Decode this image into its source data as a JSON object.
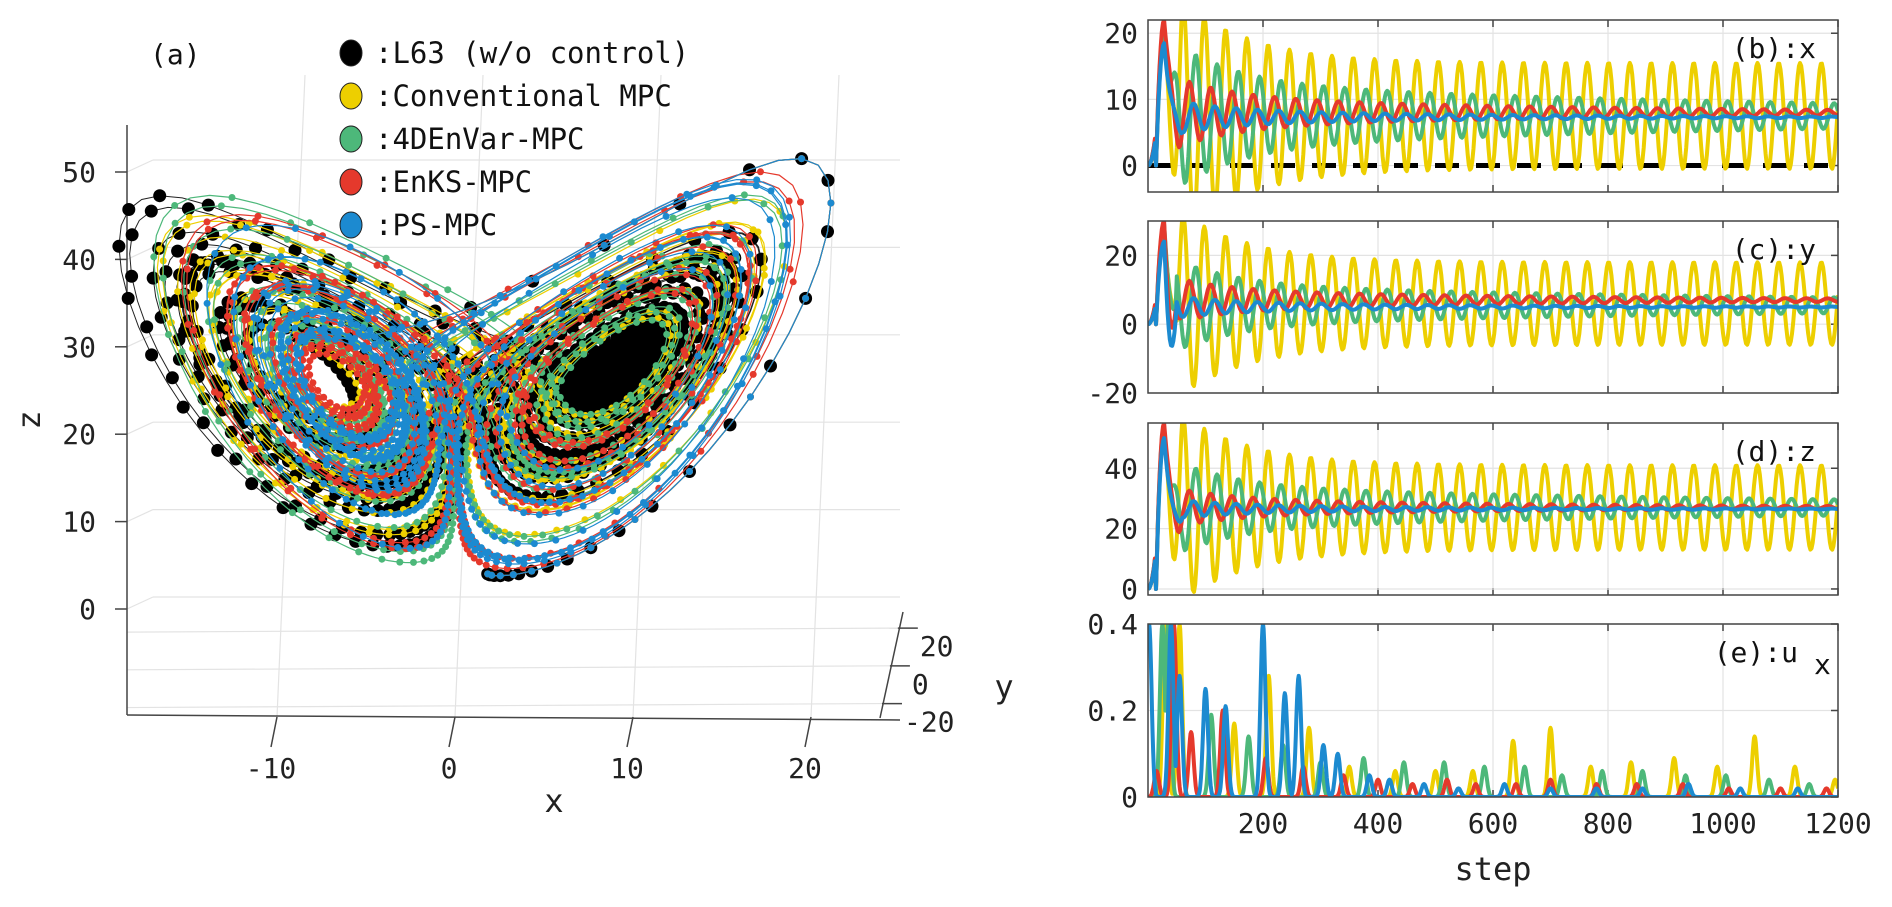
{
  "colors": {
    "L63": "#000000",
    "Conventional MPC": "#EDCF00",
    "4DEnVar-MPC": "#4DB87A",
    "EnKS-MPC": "#E5392C",
    "PS-MPC": "#1C8AD0",
    "zero_line": "#000000"
  },
  "chart_data": [
    {
      "id": "a",
      "type": "scatter",
      "projection": "3d",
      "panel_label": "(a)",
      "title": "",
      "xlabel": "x",
      "ylabel": "y",
      "zlabel": "z",
      "xticks": [
        -10,
        0,
        10,
        20
      ],
      "yticks": [
        -20,
        0,
        20
      ],
      "zticks": [
        0,
        10,
        20,
        30,
        40,
        50
      ],
      "xlim": [
        -19,
        23
      ],
      "ylim": [
        -25,
        28
      ],
      "zlim": [
        0,
        56
      ],
      "grid": true,
      "legend_position": "top-center",
      "legend": [
        {
          "label": ":L63 (w/o control)",
          "series": "L63"
        },
        {
          "label": ":Conventional MPC",
          "series": "Conventional MPC"
        },
        {
          "label": ":4DEnVar-MPC",
          "series": "4DEnVar-MPC"
        },
        {
          "label": ":EnKS-MPC",
          "series": "EnKS-MPC"
        },
        {
          "label": ":PS-MPC",
          "series": "PS-MPC"
        }
      ],
      "series": [
        {
          "name": "L63",
          "description": "uncontrolled Lorenz-63 trajectory covering both wings",
          "start": [
            1.5,
            1.5,
            4
          ],
          "marker": "large",
          "wings": "both"
        },
        {
          "name": "Conventional MPC",
          "description": "trajectory confined to right wing, wide orbit",
          "start": [
            1.5,
            1.5,
            4
          ],
          "marker": "small",
          "settle_radius": 0.75
        },
        {
          "name": "4DEnVar-MPC",
          "description": "trajectory confined to right wing, medium orbit",
          "start": [
            1.5,
            1.5,
            4
          ],
          "marker": "small",
          "settle_radius": 0.5
        },
        {
          "name": "EnKS-MPC",
          "description": "trajectory confined to right wing, tighter orbit",
          "start": [
            1.5,
            1.5,
            4
          ],
          "marker": "small",
          "settle_radius": 0.38
        },
        {
          "name": "PS-MPC",
          "description": "trajectory confined to right wing, tightest orbit around fixed point",
          "start": [
            1.5,
            1.5,
            4
          ],
          "marker": "small",
          "settle_radius": 0.28
        }
      ]
    },
    {
      "id": "b",
      "type": "line",
      "panel_label": "(b):x",
      "ylabel": "",
      "xlabel": "",
      "xlim": [
        0,
        1200
      ],
      "ylim": [
        -4,
        22
      ],
      "yticks": [
        0,
        10,
        20
      ],
      "xticks": [
        200,
        400,
        600,
        800,
        1000,
        1200
      ],
      "grid": true,
      "reference_line": {
        "y": 0,
        "style": "dashed",
        "color": "#000000"
      },
      "series": [
        {
          "name": "Conventional MPC",
          "initial_peak": 19,
          "mean": 7.5,
          "amplitude": 8,
          "period": 37,
          "phase": 0.6,
          "decay": 0
        },
        {
          "name": "4DEnVar-MPC",
          "initial_peak": 21,
          "mean": 7.5,
          "amplitude": 5,
          "period": 37,
          "phase": 0.0,
          "decay": 0.0008
        },
        {
          "name": "EnKS-MPC",
          "initial_peak": 22,
          "mean": 8,
          "amplitude": 2.5,
          "period": 37,
          "phase": 0.3,
          "decay": 0.0015
        },
        {
          "name": "PS-MPC",
          "initial_peak": 18.5,
          "mean": 7.3,
          "amplitude": 1.2,
          "period": 37,
          "phase": 0.1,
          "decay": 0.002
        }
      ]
    },
    {
      "id": "c",
      "type": "line",
      "panel_label": "(c):y",
      "xlim": [
        0,
        1200
      ],
      "ylim": [
        -20,
        30
      ],
      "yticks": [
        -20,
        0,
        20
      ],
      "xticks": [
        200,
        400,
        600,
        800,
        1000,
        1200
      ],
      "grid": true,
      "series": [
        {
          "name": "Conventional MPC",
          "initial_peak": 27,
          "initial_dip": -8,
          "mean": 6,
          "amplitude": 12,
          "period": 37,
          "phase": 0.6,
          "decay": 0
        },
        {
          "name": "4DEnVar-MPC",
          "initial_peak": 29,
          "initial_dip": -10,
          "mean": 5.5,
          "amplitude": 6,
          "period": 37,
          "phase": 0.0,
          "decay": 0.0008
        },
        {
          "name": "EnKS-MPC",
          "initial_peak": 30,
          "initial_dip": -18,
          "mean": 7,
          "amplitude": 3,
          "period": 37,
          "phase": 0.3,
          "decay": 0.0015
        },
        {
          "name": "PS-MPC",
          "initial_peak": 24,
          "initial_dip": -20,
          "mean": 5,
          "amplitude": 1.5,
          "period": 37,
          "phase": 0.1,
          "decay": 0.002
        }
      ]
    },
    {
      "id": "d",
      "type": "line",
      "panel_label": "(d):z",
      "xlim": [
        0,
        1200
      ],
      "ylim": [
        -2,
        55
      ],
      "yticks": [
        0,
        20,
        40
      ],
      "xticks": [
        200,
        400,
        600,
        800,
        1000,
        1200
      ],
      "grid": true,
      "series": [
        {
          "name": "Conventional MPC",
          "initial_peak": 52,
          "mean": 27,
          "amplitude": 14,
          "period": 37,
          "phase": 0.6,
          "decay": 0
        },
        {
          "name": "4DEnVar-MPC",
          "initial_peak": 54,
          "mean": 27,
          "amplitude": 7,
          "period": 37,
          "phase": 0.0,
          "decay": 0.0008
        },
        {
          "name": "EnKS-MPC",
          "initial_peak": 55,
          "mean": 27,
          "amplitude": 3,
          "period": 37,
          "phase": 0.3,
          "decay": 0.0015
        },
        {
          "name": "PS-MPC",
          "initial_peak": 50,
          "mean": 26.5,
          "amplitude": 1.5,
          "period": 37,
          "phase": 0.1,
          "decay": 0.002
        }
      ]
    },
    {
      "id": "e",
      "type": "line",
      "panel_label": "(e):u",
      "panel_label_subscript": "x",
      "xlabel": "step",
      "xlim": [
        0,
        1200
      ],
      "ylim": [
        0,
        0.4
      ],
      "yticks": [
        0,
        0.2,
        0.4
      ],
      "ytick_labels": [
        "0",
        "0.2",
        "0.4"
      ],
      "xticks": [
        200,
        400,
        600,
        800,
        1000,
        1200
      ],
      "grid": true,
      "series": [
        {
          "name": "Conventional MPC",
          "spikes": [
            [
              30,
              0.4
            ],
            [
              55,
              0.4
            ],
            [
              150,
              0.17
            ],
            [
              210,
              0.28
            ],
            [
              280,
              0.16
            ],
            [
              350,
              0.07
            ],
            [
              430,
              0.06
            ],
            [
              500,
              0.06
            ],
            [
              565,
              0.06
            ],
            [
              635,
              0.13
            ],
            [
              700,
              0.16
            ],
            [
              770,
              0.07
            ],
            [
              840,
              0.08
            ],
            [
              915,
              0.09
            ],
            [
              990,
              0.07
            ],
            [
              1055,
              0.14
            ],
            [
              1125,
              0.07
            ],
            [
              1195,
              0.04
            ]
          ]
        },
        {
          "name": "4DEnVar-MPC",
          "spikes": [
            [
              25,
              0.4
            ],
            [
              35,
              0.4
            ],
            [
              110,
              0.19
            ],
            [
              175,
              0.14
            ],
            [
              235,
              0.12
            ],
            [
              300,
              0.08
            ],
            [
              375,
              0.09
            ],
            [
              445,
              0.08
            ],
            [
              515,
              0.08
            ],
            [
              585,
              0.07
            ],
            [
              655,
              0.07
            ],
            [
              720,
              0.05
            ],
            [
              790,
              0.06
            ],
            [
              860,
              0.06
            ],
            [
              935,
              0.05
            ],
            [
              1005,
              0.05
            ],
            [
              1080,
              0.04
            ],
            [
              1150,
              0.03
            ]
          ]
        },
        {
          "name": "EnKS-MPC",
          "spikes": [
            [
              15,
              0.06
            ],
            [
              45,
              0.4
            ],
            [
              75,
              0.15
            ],
            [
              130,
              0.2
            ],
            [
              205,
              0.09
            ],
            [
              270,
              0.07
            ],
            [
              340,
              0.05
            ],
            [
              400,
              0.04
            ],
            [
              460,
              0.03
            ],
            [
              520,
              0.04
            ],
            [
              570,
              0.03
            ],
            [
              640,
              0.03
            ],
            [
              700,
              0.04
            ],
            [
              780,
              0.03
            ],
            [
              850,
              0.03
            ],
            [
              930,
              0.03
            ],
            [
              1010,
              0.02
            ],
            [
              1100,
              0.02
            ],
            [
              1180,
              0.02
            ]
          ]
        },
        {
          "name": "PS-MPC",
          "spikes": [
            [
              2,
              0.4
            ],
            [
              40,
              0.4
            ],
            [
              55,
              0.28
            ],
            [
              100,
              0.25
            ],
            [
              135,
              0.21
            ],
            [
              200,
              0.4
            ],
            [
              238,
              0.24
            ],
            [
              262,
              0.28
            ],
            [
              305,
              0.12
            ],
            [
              330,
              0.1
            ],
            [
              385,
              0.05
            ],
            [
              420,
              0.04
            ],
            [
              480,
              0.03
            ],
            [
              540,
              0.02
            ],
            [
              620,
              0.03
            ],
            [
              700,
              0.02
            ],
            [
              780,
              0.02
            ],
            [
              860,
              0.02
            ],
            [
              940,
              0.03
            ],
            [
              1030,
              0.02
            ],
            [
              1130,
              0.02
            ]
          ]
        }
      ]
    }
  ]
}
